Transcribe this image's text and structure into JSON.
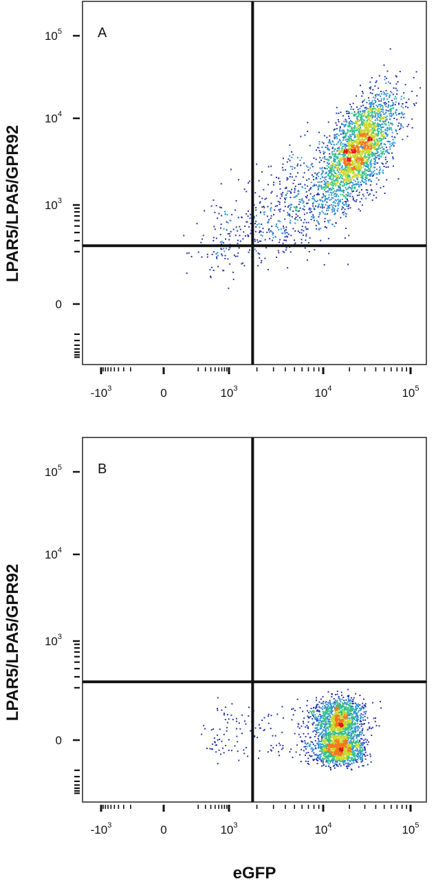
{
  "chart_data": [
    {
      "type": "scatter",
      "panel_label": "A",
      "xlabel": "",
      "ylabel": "LPAR5/LPA5/GPR92",
      "x_ticks": [
        {
          "base": "-10",
          "exp": "3",
          "value": -1000
        },
        {
          "base": "0",
          "exp": "",
          "value": 0
        },
        {
          "base": "10",
          "exp": "3",
          "value": 1000
        },
        {
          "base": "10",
          "exp": "4",
          "value": 10000
        },
        {
          "base": "10",
          "exp": "5",
          "value": 100000
        }
      ],
      "y_ticks": [
        {
          "base": "0",
          "exp": "",
          "value": 0
        },
        {
          "base": "10",
          "exp": "3",
          "value": 1000
        },
        {
          "base": "10",
          "exp": "4",
          "value": 10000
        },
        {
          "base": "10",
          "exp": "5",
          "value": 100000
        }
      ],
      "scale": "biexponential",
      "quadrant_gate": {
        "x": 1800,
        "y": 250
      },
      "populations": [
        {
          "x_center": 25000,
          "y_center": 4500,
          "x_spread": 0.22,
          "y_spread": 0.32,
          "count": 2600,
          "corr": 0.6
        },
        {
          "x_center": 5000,
          "y_center": 900,
          "x_spread": 0.35,
          "y_spread": 0.35,
          "count": 500,
          "corr": 0.4
        },
        {
          "x_center": 800,
          "y_center": 300,
          "x_spread": 0.35,
          "y_spread": 0.3,
          "count": 120,
          "corr": 0.3
        }
      ],
      "grid": false,
      "legend": "none"
    },
    {
      "type": "scatter",
      "panel_label": "B",
      "xlabel": "eGFP",
      "ylabel": "LPAR5/LPA5/GPR92",
      "x_ticks": [
        {
          "base": "-10",
          "exp": "3",
          "value": -1000
        },
        {
          "base": "0",
          "exp": "",
          "value": 0
        },
        {
          "base": "10",
          "exp": "3",
          "value": 1000
        },
        {
          "base": "10",
          "exp": "4",
          "value": 10000
        },
        {
          "base": "10",
          "exp": "5",
          "value": 100000
        }
      ],
      "y_ticks": [
        {
          "base": "0",
          "exp": "",
          "value": 0
        },
        {
          "base": "10",
          "exp": "3",
          "value": 1000
        },
        {
          "base": "10",
          "exp": "4",
          "value": 10000
        },
        {
          "base": "10",
          "exp": "5",
          "value": 100000
        }
      ],
      "scale": "biexponential",
      "quadrant_gate": {
        "x": 1800,
        "y": 250
      },
      "populations": [
        {
          "x_center": 15000,
          "y_center": 10,
          "x_spread": 0.14,
          "y_spread": 55,
          "count": 2600,
          "corr": 0.0
        },
        {
          "x_center": 3000,
          "y_center": 10,
          "x_spread": 0.5,
          "y_spread": 50,
          "count": 180,
          "corr": 0.0
        }
      ],
      "grid": false,
      "legend": "none"
    }
  ],
  "colors": {
    "low": "#2233aa",
    "mid_low": "#2f8fd0",
    "mid": "#35c28a",
    "mid_high": "#c8d82a",
    "high": "#f07a1a",
    "peak": "#e0151a",
    "gate": "#111111",
    "frame": "#222222"
  }
}
